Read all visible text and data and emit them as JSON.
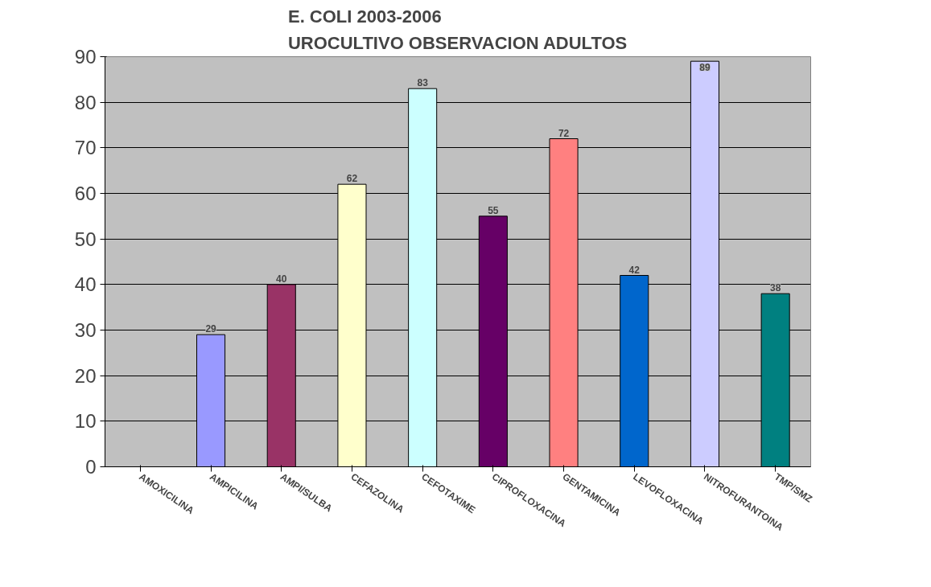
{
  "chart_data": {
    "type": "bar",
    "title": "E. COLI 2003-2006\nUROCULTIVO OBSERVACION ADULTOS",
    "categories": [
      "AMOXICILINA",
      "AMPICILINA",
      "AMPI/SULBA",
      "CEFAZOLINA",
      "CEFOTAXIME",
      "CIPROFLOXACINA",
      "GENTAMICINA",
      "LEVOFLOXACINA",
      "NITROFURANTOINA",
      "TMP/SMZ"
    ],
    "values": [
      null,
      29,
      40,
      62,
      83,
      55,
      72,
      42,
      89,
      38
    ],
    "colors": [
      null,
      "#9999ff",
      "#993366",
      "#ffffcc",
      "#ccffff",
      "#660066",
      "#ff8080",
      "#0066cc",
      "#ccccff",
      "#008080"
    ],
    "ylim": [
      0,
      90
    ],
    "yticks": [
      0,
      10,
      20,
      30,
      40,
      50,
      60,
      70,
      80,
      90
    ],
    "grid": "y",
    "data_labels": true
  }
}
